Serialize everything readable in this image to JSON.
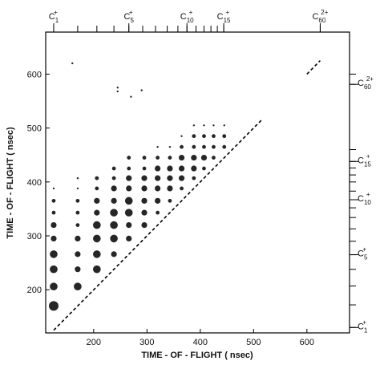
{
  "chart_data": {
    "type": "scatter",
    "xlabel": "TIME - OF - FLIGHT  ( nsec)",
    "ylabel": "TIME - OF - FLIGHT  ( nsec)",
    "xlim": [
      110,
      680
    ],
    "ylim": [
      120,
      678
    ],
    "xticks": [
      200,
      300,
      400,
      500,
      600
    ],
    "yticks": [
      200,
      300,
      400,
      500,
      600
    ],
    "color": "#000000",
    "points": {
      "x": [
        125,
        125,
        125,
        125,
        125,
        125,
        125,
        125,
        125,
        170,
        170,
        170,
        170,
        170,
        170,
        170,
        170,
        170,
        206,
        206,
        206,
        206,
        206,
        206,
        206,
        206,
        238,
        238,
        238,
        238,
        238,
        238,
        238,
        238,
        266,
        266,
        266,
        266,
        266,
        266,
        266,
        266,
        295,
        295,
        295,
        295,
        295,
        295,
        295,
        320,
        320,
        320,
        320,
        320,
        320,
        320,
        343,
        343,
        343,
        343,
        343,
        343,
        365,
        365,
        365,
        365,
        365,
        365,
        388,
        388,
        388,
        388,
        388,
        388,
        407,
        407,
        407,
        407,
        407,
        425,
        425,
        425,
        425,
        445,
        445,
        445,
        160,
        245,
        245,
        270,
        290
      ],
      "y": [
        170,
        206,
        238,
        266,
        295,
        320,
        343,
        365,
        388,
        206,
        238,
        266,
        295,
        320,
        343,
        365,
        388,
        407,
        238,
        266,
        295,
        320,
        343,
        365,
        388,
        407,
        266,
        295,
        320,
        343,
        365,
        388,
        407,
        425,
        295,
        320,
        343,
        365,
        388,
        407,
        425,
        445,
        320,
        343,
        365,
        388,
        407,
        425,
        445,
        343,
        365,
        388,
        407,
        425,
        445,
        465,
        365,
        388,
        407,
        425,
        445,
        465,
        388,
        407,
        425,
        445,
        465,
        485,
        407,
        425,
        445,
        465,
        485,
        505,
        425,
        445,
        465,
        485,
        505,
        445,
        465,
        485,
        505,
        465,
        485,
        505,
        620,
        575,
        568,
        558,
        570
      ],
      "size": [
        5,
        4,
        4,
        4,
        3,
        3,
        2,
        2,
        1,
        4,
        3,
        3,
        3,
        2,
        2,
        2,
        1,
        1,
        4,
        4,
        4,
        4,
        3,
        3,
        2,
        2,
        3,
        4,
        4,
        4,
        3,
        3,
        2,
        2,
        3,
        3,
        4,
        4,
        3,
        3,
        2,
        2,
        3,
        3,
        3,
        3,
        3,
        2,
        2,
        2,
        3,
        3,
        3,
        3,
        2,
        1,
        2,
        3,
        3,
        3,
        2,
        1,
        2,
        3,
        3,
        3,
        2,
        1,
        2,
        3,
        3,
        2,
        2,
        1,
        2,
        3,
        2,
        2,
        1,
        2,
        2,
        2,
        1,
        2,
        2,
        1,
        1,
        1,
        1,
        1,
        1
      ]
    },
    "lines": [
      {
        "x": [
          125,
          515
        ],
        "y": [
          125,
          515
        ]
      },
      {
        "x": [
          600,
          625
        ],
        "y": [
          600,
          625
        ]
      }
    ],
    "top_axis": {
      "ticks": [
        125,
        170,
        206,
        238,
        266,
        292,
        316,
        338,
        358,
        375,
        392,
        407,
        420,
        432,
        444,
        625
      ],
      "labels": [
        {
          "value": 125,
          "ion": "C",
          "sub": "1",
          "sup": "+"
        },
        {
          "value": 266,
          "ion": "C",
          "sub": "5",
          "sup": "+"
        },
        {
          "value": 375,
          "ion": "C",
          "sub": "10",
          "sup": "+"
        },
        {
          "value": 444,
          "ion": "C",
          "sub": "15",
          "sup": "+"
        },
        {
          "value": 625,
          "ion": "C",
          "sub": "60",
          "sup": "2+"
        }
      ]
    },
    "right_axis": {
      "ticks": [
        130,
        172,
        207,
        238,
        265,
        290,
        313,
        334,
        352,
        367,
        383,
        400,
        413,
        426,
        438,
        460,
        581,
        600
      ],
      "labels": [
        {
          "value": 130,
          "ion": "C",
          "sub": "1",
          "sup": "+"
        },
        {
          "value": 265,
          "ion": "C",
          "sub": "5",
          "sup": "+"
        },
        {
          "value": 367,
          "ion": "C",
          "sub": "10",
          "sup": "+"
        },
        {
          "value": 438,
          "ion": "C",
          "sub": "15",
          "sup": "+"
        },
        {
          "value": 581,
          "ion": "C",
          "sub": "60",
          "sup": "2+"
        }
      ]
    }
  }
}
